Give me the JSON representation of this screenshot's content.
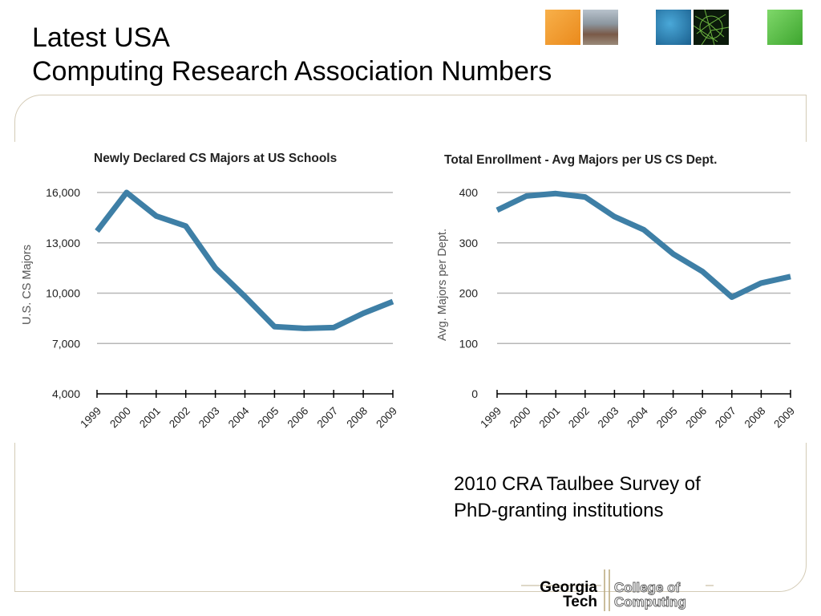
{
  "slide": {
    "title_line1": "Latest USA",
    "title_line2": "Computing Research Association Numbers",
    "caption_line1": "2010 CRA Taulbee Survey of",
    "caption_line2": "PhD-granting institutions",
    "logo": {
      "word1": "Georgia",
      "word2": "Tech",
      "word3": "College of",
      "word4": "Computing"
    }
  },
  "colors": {
    "line": "#3e7fa6",
    "grid": "#b7b7b7",
    "frame": "#d4cbb6"
  },
  "chart_data": [
    {
      "type": "line",
      "title": "Newly Declared CS Majors at US Schools",
      "xlabel": "",
      "ylabel": "U.S. CS Majors",
      "categories": [
        "1999",
        "2000",
        "2001",
        "2002",
        "2003",
        "2004",
        "2005",
        "2006",
        "2007",
        "2008",
        "2009"
      ],
      "values": [
        13700,
        16000,
        14600,
        14000,
        11500,
        9800,
        8000,
        7900,
        7950,
        8800,
        9500
      ],
      "ylim": [
        4000,
        16000
      ],
      "yticks": [
        "16,000",
        "13,000",
        "10,000",
        "7,000",
        "4,000"
      ],
      "ytick_values": [
        16000,
        13000,
        10000,
        7000,
        4000
      ],
      "grid": true
    },
    {
      "type": "line",
      "title": "Total Enrollment - Avg Majors per US CS Dept.",
      "xlabel": "",
      "ylabel": "Avg. Majors per Dept.",
      "categories": [
        "1999",
        "2000",
        "2001",
        "2002",
        "2003",
        "2004",
        "2005",
        "2006",
        "2007",
        "2008",
        "2009"
      ],
      "values": [
        365,
        393,
        398,
        391,
        352,
        326,
        278,
        243,
        192,
        220,
        233
      ],
      "ylim": [
        0,
        400
      ],
      "yticks": [
        "400",
        "300",
        "200",
        "100",
        "0"
      ],
      "ytick_values": [
        400,
        300,
        200,
        100,
        0
      ],
      "grid": true
    }
  ]
}
